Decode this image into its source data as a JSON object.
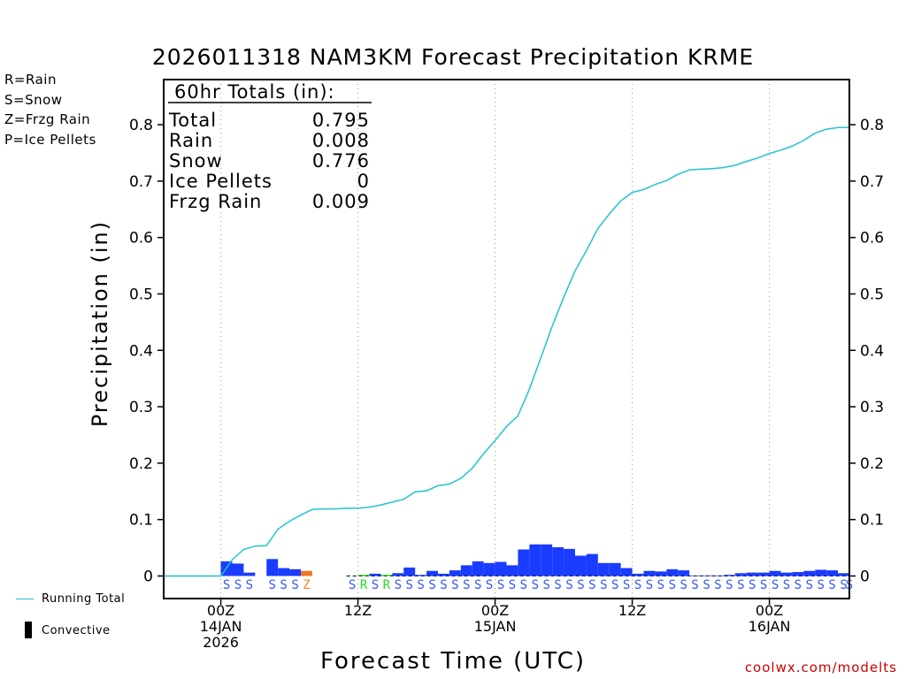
{
  "title": "2026011318 NAM3KM Forecast Precipitation KRME",
  "legend_types": [
    {
      "label": "R=Rain",
      "color": "#22dd22"
    },
    {
      "label": "S=Snow",
      "color": "#3355ff"
    },
    {
      "label": "Z=Frzg Rain",
      "color": "#ee8822"
    },
    {
      "label": "P=Ice Pellets",
      "color": "#ee2299"
    }
  ],
  "legend_lines": {
    "running_total": "Running Total",
    "convective": "Convective"
  },
  "credit": "coolwx.com/modelts",
  "colors": {
    "running_total": "#22c4cc",
    "snow": "#1a3cff",
    "rain": "#22cc22",
    "frzg": "#ee7722",
    "grid": "#999999"
  },
  "totals_box": {
    "header": "60hr Totals (in):",
    "rows": [
      {
        "label": "Total",
        "value": "0.795"
      },
      {
        "label": "Rain",
        "value": "0.008"
      },
      {
        "label": "Snow",
        "value": "0.776"
      },
      {
        "label": "Ice Pellets",
        "value": "0"
      },
      {
        "label": "Frzg Rain",
        "value": "0.009"
      }
    ]
  },
  "chart_data": {
    "type": "bar",
    "title": "2026011318 NAM3KM Forecast Precipitation KRME",
    "xlabel": "Forecast Time (UTC)",
    "ylabel": "Precipitation (in)",
    "ylim": [
      -0.04,
      0.88
    ],
    "yticks": [
      "0",
      "0.1",
      "0.2",
      "0.3",
      "0.4",
      "0.5",
      "0.6",
      "0.7",
      "0.8"
    ],
    "xlim_hours": [
      -5,
      55
    ],
    "xticks": [
      {
        "hour": 0,
        "label": "00Z\n14JAN\n2026"
      },
      {
        "hour": 12,
        "label": "12Z"
      },
      {
        "hour": 24,
        "label": "00Z\n15JAN"
      },
      {
        "hour": 36,
        "label": "12Z"
      },
      {
        "hour": 48,
        "label": "00Z\n16JAN"
      }
    ],
    "series": [
      {
        "name": "Hourly Precipitation",
        "type": "bar",
        "bars": [
          {
            "hour": 0.5,
            "value": 0.026,
            "ptype": "S"
          },
          {
            "hour": 1.5,
            "value": 0.022,
            "ptype": "S"
          },
          {
            "hour": 2.5,
            "value": 0.006,
            "ptype": "S"
          },
          {
            "hour": 4.5,
            "value": 0.03,
            "ptype": "S"
          },
          {
            "hour": 5.5,
            "value": 0.014,
            "ptype": "S"
          },
          {
            "hour": 6.5,
            "value": 0.012,
            "ptype": "S"
          },
          {
            "hour": 7.5,
            "value": 0.009,
            "ptype": "Z"
          },
          {
            "hour": 12.5,
            "value": 0.002,
            "ptype": "R"
          },
          {
            "hour": 13.5,
            "value": 0.004,
            "ptype": "S"
          },
          {
            "hour": 14.5,
            "value": 0.002,
            "ptype": "R"
          },
          {
            "hour": 15.5,
            "value": 0.005,
            "ptype": "S"
          },
          {
            "hour": 16.5,
            "value": 0.015,
            "ptype": "S"
          },
          {
            "hour": 17.5,
            "value": 0.002,
            "ptype": "S"
          },
          {
            "hour": 18.5,
            "value": 0.009,
            "ptype": "S"
          },
          {
            "hour": 19.5,
            "value": 0.004,
            "ptype": "S"
          },
          {
            "hour": 20.5,
            "value": 0.01,
            "ptype": "S"
          },
          {
            "hour": 21.5,
            "value": 0.019,
            "ptype": "S"
          },
          {
            "hour": 22.5,
            "value": 0.026,
            "ptype": "S"
          },
          {
            "hour": 23.5,
            "value": 0.023,
            "ptype": "S"
          },
          {
            "hour": 24.5,
            "value": 0.025,
            "ptype": "S"
          },
          {
            "hour": 25.5,
            "value": 0.019,
            "ptype": "S"
          },
          {
            "hour": 26.5,
            "value": 0.047,
            "ptype": "S"
          },
          {
            "hour": 27.5,
            "value": 0.056,
            "ptype": "S"
          },
          {
            "hour": 28.5,
            "value": 0.056,
            "ptype": "S"
          },
          {
            "hour": 29.5,
            "value": 0.051,
            "ptype": "S"
          },
          {
            "hour": 30.5,
            "value": 0.048,
            "ptype": "S"
          },
          {
            "hour": 31.5,
            "value": 0.036,
            "ptype": "S"
          },
          {
            "hour": 32.5,
            "value": 0.039,
            "ptype": "S"
          },
          {
            "hour": 33.5,
            "value": 0.023,
            "ptype": "S"
          },
          {
            "hour": 34.5,
            "value": 0.023,
            "ptype": "S"
          },
          {
            "hour": 35.5,
            "value": 0.014,
            "ptype": "S"
          },
          {
            "hour": 36.5,
            "value": 0.004,
            "ptype": "S"
          },
          {
            "hour": 37.5,
            "value": 0.009,
            "ptype": "S"
          },
          {
            "hour": 38.5,
            "value": 0.008,
            "ptype": "S"
          },
          {
            "hour": 39.5,
            "value": 0.012,
            "ptype": "S"
          },
          {
            "hour": 40.5,
            "value": 0.01,
            "ptype": "S"
          },
          {
            "hour": 41.5,
            "value": 0.001,
            "ptype": "S"
          },
          {
            "hour": 42.5,
            "value": 0.001,
            "ptype": "S"
          },
          {
            "hour": 43.5,
            "value": 0.001,
            "ptype": "S"
          },
          {
            "hour": 44.5,
            "value": 0.002,
            "ptype": "S"
          },
          {
            "hour": 45.5,
            "value": 0.005,
            "ptype": "S"
          },
          {
            "hour": 46.5,
            "value": 0.006,
            "ptype": "S"
          },
          {
            "hour": 47.5,
            "value": 0.006,
            "ptype": "S"
          },
          {
            "hour": 48.5,
            "value": 0.009,
            "ptype": "S"
          },
          {
            "hour": 49.5,
            "value": 0.006,
            "ptype": "S"
          },
          {
            "hour": 50.5,
            "value": 0.007,
            "ptype": "S"
          },
          {
            "hour": 51.5,
            "value": 0.009,
            "ptype": "S"
          },
          {
            "hour": 52.5,
            "value": 0.011,
            "ptype": "S"
          },
          {
            "hour": 53.5,
            "value": 0.01,
            "ptype": "S"
          },
          {
            "hour": 54.5,
            "value": 0.005,
            "ptype": "S"
          }
        ],
        "extra_ptype_labels": [
          {
            "hour": 11.5,
            "ptype": "S"
          },
          {
            "hour": 55.0,
            "ptype": "S"
          }
        ]
      },
      {
        "name": "Running Total",
        "type": "line",
        "points": [
          [
            -5,
            0
          ],
          [
            0,
            0
          ],
          [
            1,
            0.029
          ],
          [
            2,
            0.047
          ],
          [
            3,
            0.053
          ],
          [
            4,
            0.054
          ],
          [
            5,
            0.083
          ],
          [
            6,
            0.097
          ],
          [
            7,
            0.108
          ],
          [
            8,
            0.118
          ],
          [
            9,
            0.119
          ],
          [
            10,
            0.119
          ],
          [
            11,
            0.12
          ],
          [
            12,
            0.12
          ],
          [
            13,
            0.122
          ],
          [
            14,
            0.126
          ],
          [
            15,
            0.131
          ],
          [
            16,
            0.136
          ],
          [
            17,
            0.149
          ],
          [
            18,
            0.151
          ],
          [
            19,
            0.16
          ],
          [
            20,
            0.163
          ],
          [
            21,
            0.173
          ],
          [
            22,
            0.191
          ],
          [
            23,
            0.217
          ],
          [
            24,
            0.24
          ],
          [
            25,
            0.265
          ],
          [
            26,
            0.284
          ],
          [
            27,
            0.331
          ],
          [
            28,
            0.387
          ],
          [
            29,
            0.443
          ],
          [
            30,
            0.494
          ],
          [
            31,
            0.541
          ],
          [
            32,
            0.577
          ],
          [
            33,
            0.616
          ],
          [
            34,
            0.642
          ],
          [
            35,
            0.665
          ],
          [
            36,
            0.68
          ],
          [
            37,
            0.685
          ],
          [
            38,
            0.694
          ],
          [
            39,
            0.701
          ],
          [
            40,
            0.712
          ],
          [
            41,
            0.72
          ],
          [
            42,
            0.721
          ],
          [
            43,
            0.722
          ],
          [
            44,
            0.724
          ],
          [
            45,
            0.728
          ],
          [
            46,
            0.735
          ],
          [
            47,
            0.741
          ],
          [
            48,
            0.749
          ],
          [
            49,
            0.755
          ],
          [
            50,
            0.762
          ],
          [
            51,
            0.772
          ],
          [
            52,
            0.785
          ],
          [
            53,
            0.792
          ],
          [
            54,
            0.795
          ],
          [
            55,
            0.795
          ]
        ]
      }
    ]
  }
}
